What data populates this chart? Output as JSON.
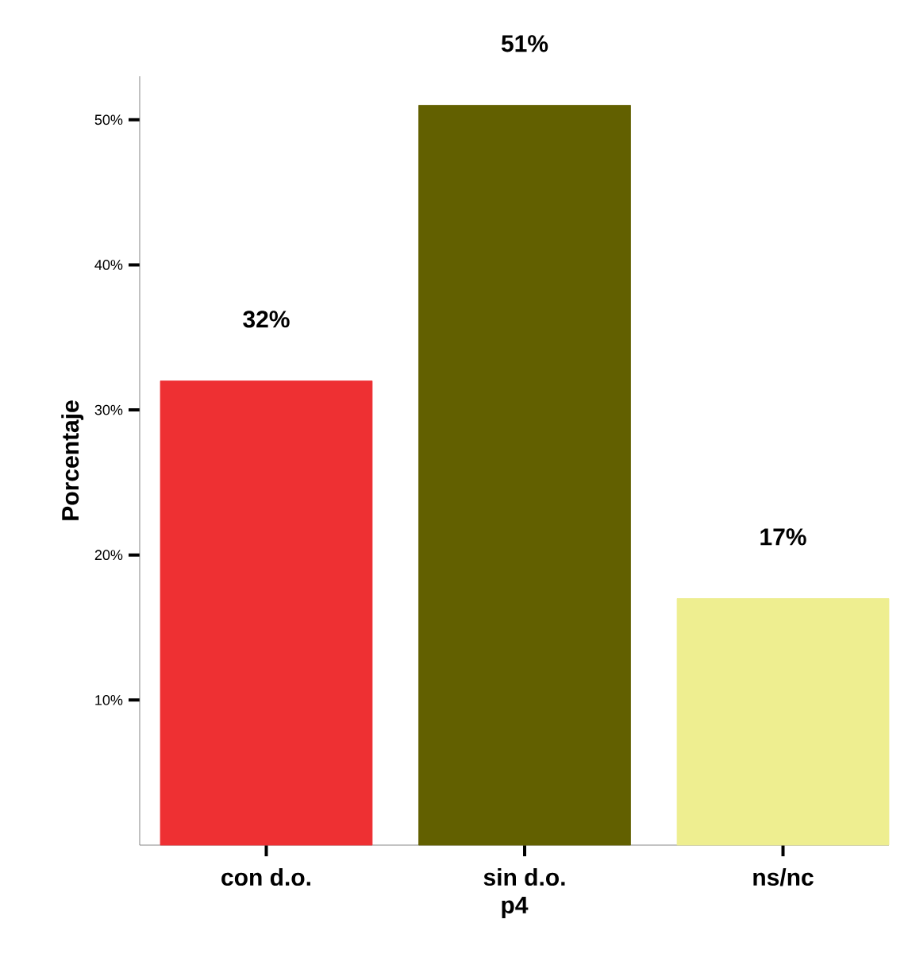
{
  "chart_data": {
    "type": "bar",
    "xlabel": "p4",
    "ylabel": "Porcentaje",
    "categories": [
      "con d.o.",
      "sin d.o.",
      "ns/nc"
    ],
    "values": [
      32,
      51,
      17
    ],
    "colors": [
      "#ee3033",
      "#626000",
      "#eeee90"
    ],
    "value_labels": [
      "32%",
      "51%",
      "17%"
    ],
    "ylim": [
      0,
      53
    ],
    "yticks": [
      {
        "value": 10,
        "label": "10%"
      },
      {
        "value": 20,
        "label": "20%"
      },
      {
        "value": 30,
        "label": "30%"
      },
      {
        "value": 40,
        "label": "40%"
      },
      {
        "value": 50,
        "label": "50%"
      }
    ]
  }
}
